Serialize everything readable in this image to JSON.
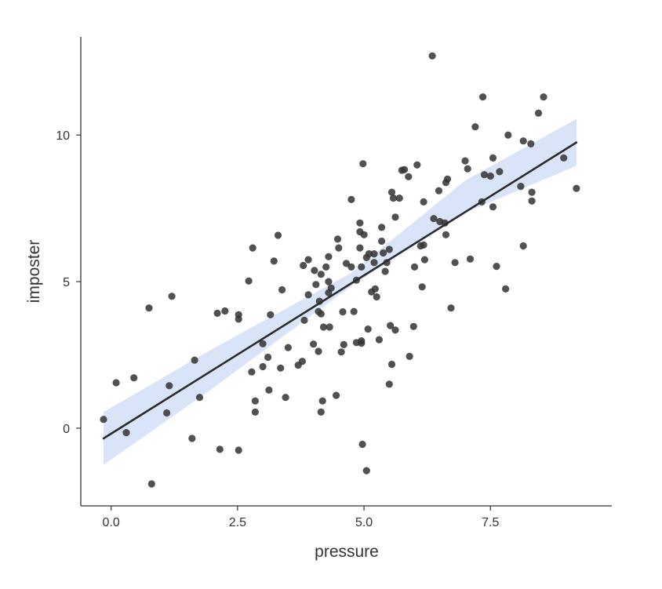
{
  "chart_data": {
    "type": "scatter",
    "title": "",
    "xlabel": "pressure",
    "ylabel": "imposter",
    "xlim": [
      -0.6,
      9.9
    ],
    "ylim": [
      -2.65,
      13.35
    ],
    "xticks": [
      {
        "value": 0,
        "label": "0.0"
      },
      {
        "value": 2.5,
        "label": "2.5"
      },
      {
        "value": 5,
        "label": "5.0"
      },
      {
        "value": 7.5,
        "label": "7.5"
      }
    ],
    "yticks": [
      {
        "value": 0,
        "label": "0"
      },
      {
        "value": 5,
        "label": "5"
      },
      {
        "value": 10,
        "label": "10"
      }
    ],
    "grid": false,
    "legend": "none",
    "colors": {
      "points": "#333333",
      "fit_line": "#2b2b2b",
      "confidence_band": "#c9d9f5",
      "axis": "#333333"
    },
    "points": [
      [
        -0.15,
        0.3
      ],
      [
        0.3,
        -0.15
      ],
      [
        0.1,
        1.55
      ],
      [
        0.45,
        1.72
      ],
      [
        0.75,
        4.1
      ],
      [
        0.8,
        -1.9
      ],
      [
        1.1,
        0.52
      ],
      [
        1.15,
        1.45
      ],
      [
        1.2,
        4.5
      ],
      [
        1.6,
        -0.35
      ],
      [
        1.65,
        2.32
      ],
      [
        1.75,
        1.05
      ],
      [
        2.1,
        3.92
      ],
      [
        2.15,
        -0.72
      ],
      [
        2.25,
        4.0
      ],
      [
        2.52,
        3.72
      ],
      [
        2.52,
        3.87
      ],
      [
        2.52,
        -0.75
      ],
      [
        2.72,
        5.02
      ],
      [
        2.78,
        1.92
      ],
      [
        2.8,
        6.15
      ],
      [
        2.85,
        0.93
      ],
      [
        2.85,
        0.55
      ],
      [
        3.0,
        2.1
      ],
      [
        3.0,
        2.88
      ],
      [
        3.1,
        2.42
      ],
      [
        3.12,
        1.3
      ],
      [
        3.15,
        3.87
      ],
      [
        3.22,
        5.7
      ],
      [
        3.3,
        6.58
      ],
      [
        3.35,
        2.05
      ],
      [
        3.38,
        4.72
      ],
      [
        3.45,
        1.05
      ],
      [
        3.5,
        2.75
      ],
      [
        3.7,
        2.15
      ],
      [
        3.78,
        2.28
      ],
      [
        3.8,
        5.55
      ],
      [
        3.82,
        3.68
      ],
      [
        3.9,
        5.75
      ],
      [
        3.9,
        4.55
      ],
      [
        4.0,
        2.87
      ],
      [
        4.02,
        5.38
      ],
      [
        4.05,
        4.9
      ],
      [
        4.1,
        2.62
      ],
      [
        4.1,
        3.98
      ],
      [
        4.12,
        4.33
      ],
      [
        4.15,
        3.9
      ],
      [
        4.15,
        5.25
      ],
      [
        4.15,
        0.55
      ],
      [
        4.18,
        0.93
      ],
      [
        4.2,
        3.45
      ],
      [
        4.25,
        5.5
      ],
      [
        4.3,
        5.85
      ],
      [
        4.3,
        5.0
      ],
      [
        4.3,
        4.62
      ],
      [
        4.32,
        3.45
      ],
      [
        4.35,
        4.78
      ],
      [
        4.45,
        1.12
      ],
      [
        4.48,
        6.45
      ],
      [
        4.5,
        6.15
      ],
      [
        4.55,
        2.6
      ],
      [
        4.58,
        3.97
      ],
      [
        4.6,
        2.85
      ],
      [
        4.65,
        5.62
      ],
      [
        4.75,
        5.5
      ],
      [
        4.75,
        7.8
      ],
      [
        4.8,
        3.98
      ],
      [
        4.85,
        5.05
      ],
      [
        4.85,
        2.92
      ],
      [
        4.92,
        6.15
      ],
      [
        4.92,
        6.7
      ],
      [
        4.92,
        7.0
      ],
      [
        4.95,
        2.98
      ],
      [
        4.95,
        5.5
      ],
      [
        4.95,
        2.9
      ],
      [
        4.97,
        -0.55
      ],
      [
        4.98,
        9.02
      ],
      [
        5.0,
        6.6
      ],
      [
        5.05,
        -1.45
      ],
      [
        5.05,
        5.82
      ],
      [
        5.08,
        3.38
      ],
      [
        5.1,
        5.95
      ],
      [
        5.15,
        4.65
      ],
      [
        5.2,
        5.95
      ],
      [
        5.2,
        5.65
      ],
      [
        5.22,
        4.75
      ],
      [
        5.25,
        4.48
      ],
      [
        5.3,
        3.02
      ],
      [
        5.35,
        6.85
      ],
      [
        5.35,
        6.38
      ],
      [
        5.38,
        5.98
      ],
      [
        5.42,
        5.35
      ],
      [
        5.45,
        5.65
      ],
      [
        5.5,
        6.1
      ],
      [
        5.5,
        1.5
      ],
      [
        5.52,
        3.5
      ],
      [
        5.55,
        2.18
      ],
      [
        5.55,
        8.05
      ],
      [
        5.58,
        7.85
      ],
      [
        5.62,
        7.2
      ],
      [
        5.62,
        3.35
      ],
      [
        5.7,
        7.85
      ],
      [
        5.75,
        8.8
      ],
      [
        5.8,
        8.82
      ],
      [
        5.88,
        8.58
      ],
      [
        5.9,
        2.45
      ],
      [
        5.98,
        3.47
      ],
      [
        6.0,
        5.5
      ],
      [
        6.05,
        8.98
      ],
      [
        6.12,
        6.22
      ],
      [
        6.15,
        4.82
      ],
      [
        6.18,
        7.72
      ],
      [
        6.18,
        6.25
      ],
      [
        6.2,
        5.75
      ],
      [
        6.35,
        12.7
      ],
      [
        6.38,
        7.15
      ],
      [
        6.48,
        8.1
      ],
      [
        6.5,
        7.05
      ],
      [
        6.6,
        7.0
      ],
      [
        6.62,
        6.6
      ],
      [
        6.62,
        8.38
      ],
      [
        6.65,
        8.5
      ],
      [
        6.72,
        4.1
      ],
      [
        6.8,
        5.65
      ],
      [
        7.0,
        9.12
      ],
      [
        7.05,
        8.85
      ],
      [
        7.1,
        5.77
      ],
      [
        7.2,
        10.28
      ],
      [
        7.33,
        7.72
      ],
      [
        7.35,
        11.3
      ],
      [
        7.38,
        8.65
      ],
      [
        7.5,
        8.6
      ],
      [
        7.55,
        9.22
      ],
      [
        7.55,
        7.55
      ],
      [
        7.62,
        5.52
      ],
      [
        7.68,
        8.75
      ],
      [
        7.8,
        4.75
      ],
      [
        7.85,
        10.0
      ],
      [
        8.1,
        8.25
      ],
      [
        8.15,
        9.8
      ],
      [
        8.15,
        6.22
      ],
      [
        8.3,
        9.7
      ],
      [
        8.32,
        8.05
      ],
      [
        8.32,
        7.75
      ],
      [
        8.45,
        10.75
      ],
      [
        8.55,
        11.3
      ],
      [
        8.95,
        9.22
      ],
      [
        9.2,
        8.18
      ]
    ],
    "fit_line": {
      "x": [
        -0.15,
        9.2
      ],
      "y": [
        -0.35,
        9.75
      ]
    },
    "confidence_band": {
      "x": [
        -0.15,
        2.0,
        4.75,
        7.0,
        9.2
      ],
      "lower": [
        -1.25,
        1.35,
        4.85,
        7.35,
        8.95
      ],
      "upper": [
        0.55,
        2.7,
        5.3,
        8.45,
        10.55
      ]
    }
  }
}
